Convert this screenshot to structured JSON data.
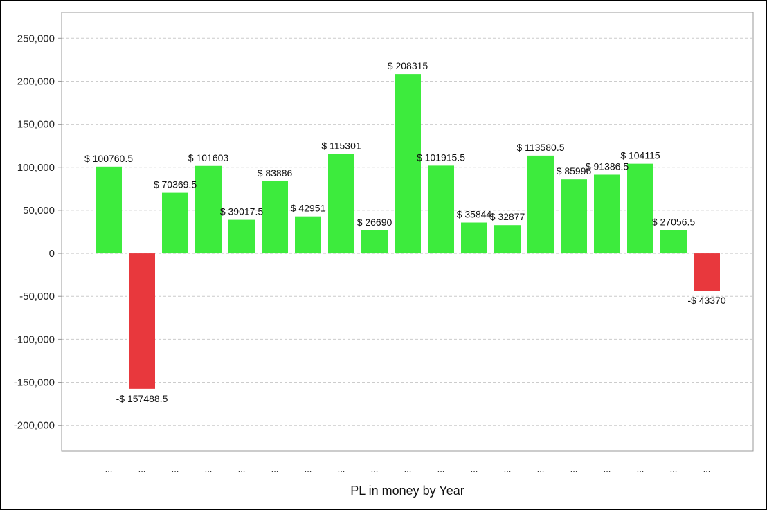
{
  "chart_data": {
    "type": "bar",
    "xlabel": "PL in money by Year",
    "ylabel": "",
    "ylim": [
      -230000,
      280000
    ],
    "yticks": [
      -200000,
      -150000,
      -100000,
      -50000,
      0,
      50000,
      100000,
      150000,
      200000,
      250000
    ],
    "ytick_labels": [
      "-200,000",
      "-150,000",
      "-100,000",
      "-50,000",
      "0",
      "50,000",
      "100,000",
      "150,000",
      "200,000",
      "250,000"
    ],
    "grid": true,
    "legend": "none",
    "colors": {
      "positive": "#3deb3d",
      "negative": "#e8383d",
      "grid": "#cccccc",
      "axis": "#999999"
    },
    "categories": [
      "...",
      "...",
      "...",
      "...",
      "...",
      "...",
      "...",
      "...",
      "...",
      "...",
      "...",
      "...",
      "...",
      "...",
      "...",
      "...",
      "...",
      "...",
      "..."
    ],
    "values": [
      100760.5,
      -157488.5,
      70369.5,
      101603,
      39017.5,
      83886,
      42951,
      115301,
      26690,
      208315,
      101915.5,
      35844,
      32877,
      113580.5,
      85996,
      91386.5,
      104115,
      27056.5,
      -43370
    ],
    "labels": [
      "$ 100760.5",
      "-$ 157488.5",
      "$ 70369.5",
      "$ 101603",
      "$ 39017.5",
      "$ 83886",
      "$ 42951",
      "$ 115301",
      "$ 26690",
      "$ 208315",
      "$ 101915.5",
      "$ 35844",
      "$ 32877",
      "$ 113580.5",
      "$ 85996",
      "$ 91386.5",
      "$ 104115",
      "$ 27056.5",
      "-$ 43370"
    ]
  }
}
